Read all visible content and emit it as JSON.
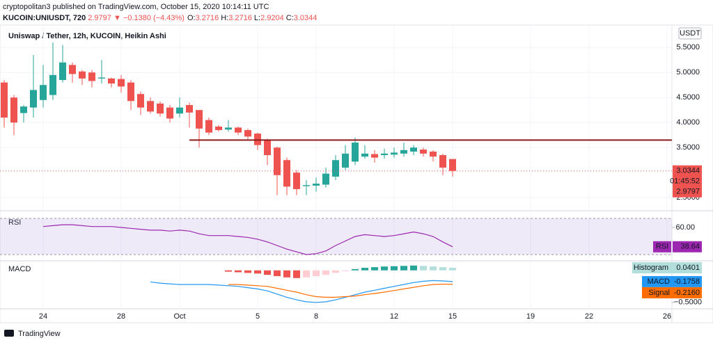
{
  "header": {
    "line1": "cryptopolitan3 published on TradingView.com, October 15, 2020 10:14:11 UTC",
    "symbol": "KUCOIN:UNIUSDT, 720",
    "change": " 2.9797 ▼ −0.1380 (−4.43%)",
    "ohlc_labels": [
      "O:",
      "H:",
      "L:",
      "C:"
    ],
    "ohlc_values": [
      "3.2716",
      "3.2716",
      "2.9204",
      "3.0344"
    ],
    "current": "2.9797",
    "countdown": "01:45:52",
    "currency": "USDT",
    "brand": "TradingView"
  },
  "chart_data": {
    "type": "candlestick",
    "title": "Uniswap / Tether, 12h, KUCOIN, Heikin Ashi",
    "up_color": "#26a69a",
    "down_color": "#ef5350",
    "open": [
      4.8,
      4.5,
      4.19,
      4.3,
      4.45,
      4.55,
      4.85,
      5.15,
      5.02,
      5.0,
      4.88,
      4.88,
      4.87,
      4.8,
      4.57,
      4.43,
      4.38,
      4.3,
      4.18,
      4.35,
      4.25,
      4.05,
      3.92,
      3.86,
      3.9,
      3.85,
      3.78,
      3.65,
      3.5,
      3.25,
      3.0,
      2.73,
      2.74,
      2.76,
      2.92,
      3.1,
      3.22,
      3.32,
      3.37,
      3.35,
      3.36,
      3.38,
      3.42,
      3.46,
      3.42,
      3.35,
      3.2716
    ],
    "high": [
      4.85,
      4.55,
      4.35,
      5.35,
      5.15,
      5.6,
      5.55,
      5.2,
      5.05,
      5.05,
      5.25,
      4.9,
      4.95,
      4.85,
      4.62,
      4.5,
      4.42,
      4.35,
      4.5,
      4.4,
      4.25,
      4.1,
      3.95,
      4.05,
      3.92,
      3.88,
      3.8,
      3.68,
      3.52,
      3.3,
      3.05,
      2.85,
      2.9,
      3.1,
      3.35,
      3.55,
      3.7,
      3.55,
      3.45,
      3.48,
      3.5,
      3.6,
      3.55,
      3.5,
      3.45,
      3.38,
      3.2716
    ],
    "low": [
      3.9,
      3.75,
      4.0,
      4.1,
      4.3,
      4.45,
      4.8,
      4.8,
      4.75,
      4.7,
      4.78,
      4.7,
      4.6,
      4.25,
      4.15,
      4.18,
      4.12,
      4.0,
      4.1,
      3.9,
      3.5,
      3.75,
      3.82,
      3.82,
      3.75,
      3.65,
      3.45,
      3.15,
      2.55,
      2.55,
      2.55,
      2.55,
      2.62,
      2.7,
      2.85,
      3.05,
      3.15,
      3.28,
      3.2,
      3.28,
      3.3,
      3.32,
      3.35,
      3.32,
      3.22,
      2.95,
      2.9204
    ],
    "close": [
      4.1,
      4.0,
      4.32,
      4.65,
      4.75,
      4.95,
      5.2,
      4.97,
      4.88,
      4.83,
      4.9,
      4.78,
      4.72,
      4.43,
      4.3,
      4.22,
      4.18,
      4.08,
      4.3,
      4.2,
      3.88,
      3.8,
      3.85,
      3.9,
      3.8,
      3.72,
      3.55,
      3.35,
      2.95,
      2.72,
      2.67,
      2.75,
      2.78,
      2.98,
      3.25,
      3.38,
      3.6,
      3.38,
      3.3,
      3.38,
      3.4,
      3.45,
      3.5,
      3.38,
      3.32,
      3.1,
      3.0344
    ],
    "xlim": [
      -0.4286,
      68.5
    ],
    "xticks": [
      {
        "value": 4,
        "label": "24"
      },
      {
        "value": 12,
        "label": "28"
      },
      {
        "value": 18,
        "label": "Oct"
      },
      {
        "value": 26,
        "label": "5"
      },
      {
        "value": 32,
        "label": "8"
      },
      {
        "value": 40,
        "label": "12"
      },
      {
        "value": 46,
        "label": "15"
      },
      {
        "value": 54,
        "label": "19"
      },
      {
        "value": 60,
        "label": "22"
      },
      {
        "value": 68,
        "label": "26"
      }
    ],
    "ylim": [
      2.28,
      5.92
    ],
    "yticks": [
      {
        "value": 2.5,
        "label": "2.5000"
      },
      {
        "value": 3.5,
        "label": "3.5000"
      },
      {
        "value": 4,
        "label": "4.0000"
      },
      {
        "value": 4.5,
        "label": "4.5000"
      },
      {
        "value": 5,
        "label": "5.0000"
      },
      {
        "value": 5.5,
        "label": "5.5000"
      }
    ],
    "hline": 3.65,
    "hline_start": 19,
    "hline_color": "#8b1a1a",
    "rsi": {
      "name": "RSI",
      "color": "#9c27b0",
      "band": [
        30,
        70
      ],
      "band_color": "#9575cd",
      "ylim": [
        25.4,
        76.9
      ],
      "yticks": [
        {
          "value": 60,
          "label": "60.00"
        }
      ],
      "values": [
        null,
        null,
        null,
        null,
        61,
        62,
        63,
        63,
        62,
        61,
        61,
        61,
        60,
        59,
        58,
        57,
        57,
        56,
        57,
        56,
        53,
        51,
        51,
        51,
        50,
        49,
        47,
        44,
        40,
        36,
        33,
        30,
        31,
        34,
        40,
        45,
        50,
        52,
        51,
        50,
        51,
        53,
        55,
        53,
        50,
        44,
        38.64
      ]
    },
    "macd": {
      "name": "MACD",
      "ylim": [
        -0.6,
        0.116
      ],
      "yticks": [
        {
          "value": -0.5,
          "label": "−0.5000"
        }
      ],
      "histogram": {
        "name": "Histogram",
        "colors": [
          "#26a69a",
          "#b2dfdb",
          "#ef5350",
          "#ffcdd2"
        ],
        "values": [
          null,
          null,
          null,
          null,
          null,
          null,
          null,
          null,
          null,
          null,
          null,
          null,
          null,
          null,
          null,
          null,
          null,
          null,
          null,
          null,
          null,
          null,
          null,
          -0.02,
          -0.03,
          -0.04,
          -0.05,
          -0.07,
          -0.09,
          -0.11,
          -0.12,
          -0.11,
          -0.09,
          -0.07,
          -0.04,
          -0.01,
          0.02,
          0.04,
          0.05,
          0.06,
          0.065,
          0.07,
          0.075,
          0.07,
          0.06,
          0.05,
          0.0401
        ]
      },
      "series": [
        {
          "name": "MACD",
          "color": "#2196f3",
          "values": [
            null,
            null,
            null,
            null,
            null,
            null,
            null,
            null,
            null,
            null,
            null,
            null,
            null,
            null,
            null,
            -0.18,
            -0.2,
            -0.21,
            -0.22,
            -0.22,
            -0.22,
            -0.22,
            -0.23,
            -0.24,
            -0.25,
            -0.27,
            -0.29,
            -0.32,
            -0.37,
            -0.42,
            -0.46,
            -0.49,
            -0.5,
            -0.49,
            -0.46,
            -0.42,
            -0.38,
            -0.34,
            -0.31,
            -0.28,
            -0.25,
            -0.22,
            -0.19,
            -0.17,
            -0.16,
            -0.165,
            -0.1758
          ]
        },
        {
          "name": "Signal",
          "color": "#ff6d00",
          "values": [
            null,
            null,
            null,
            null,
            null,
            null,
            null,
            null,
            null,
            null,
            null,
            null,
            null,
            null,
            null,
            null,
            null,
            null,
            null,
            null,
            null,
            null,
            null,
            -0.22,
            -0.22,
            -0.23,
            -0.24,
            -0.25,
            -0.28,
            -0.31,
            -0.34,
            -0.38,
            -0.41,
            -0.42,
            -0.42,
            -0.41,
            -0.4,
            -0.38,
            -0.36,
            -0.34,
            -0.315,
            -0.29,
            -0.265,
            -0.24,
            -0.22,
            -0.215,
            -0.216
          ],
          "value_labels": [
            null,
            null,
            null,
            null,
            null,
            null,
            null,
            null,
            null,
            null,
            null,
            null,
            null,
            null,
            null,
            null,
            null,
            null,
            null,
            null,
            null,
            null,
            null,
            null,
            null,
            null,
            null,
            null,
            null,
            null,
            null,
            null,
            null,
            null,
            null,
            null,
            null,
            null,
            null,
            null,
            null,
            null,
            null,
            null,
            null,
            null,
            "-0.2160"
          ]
        }
      ]
    }
  }
}
